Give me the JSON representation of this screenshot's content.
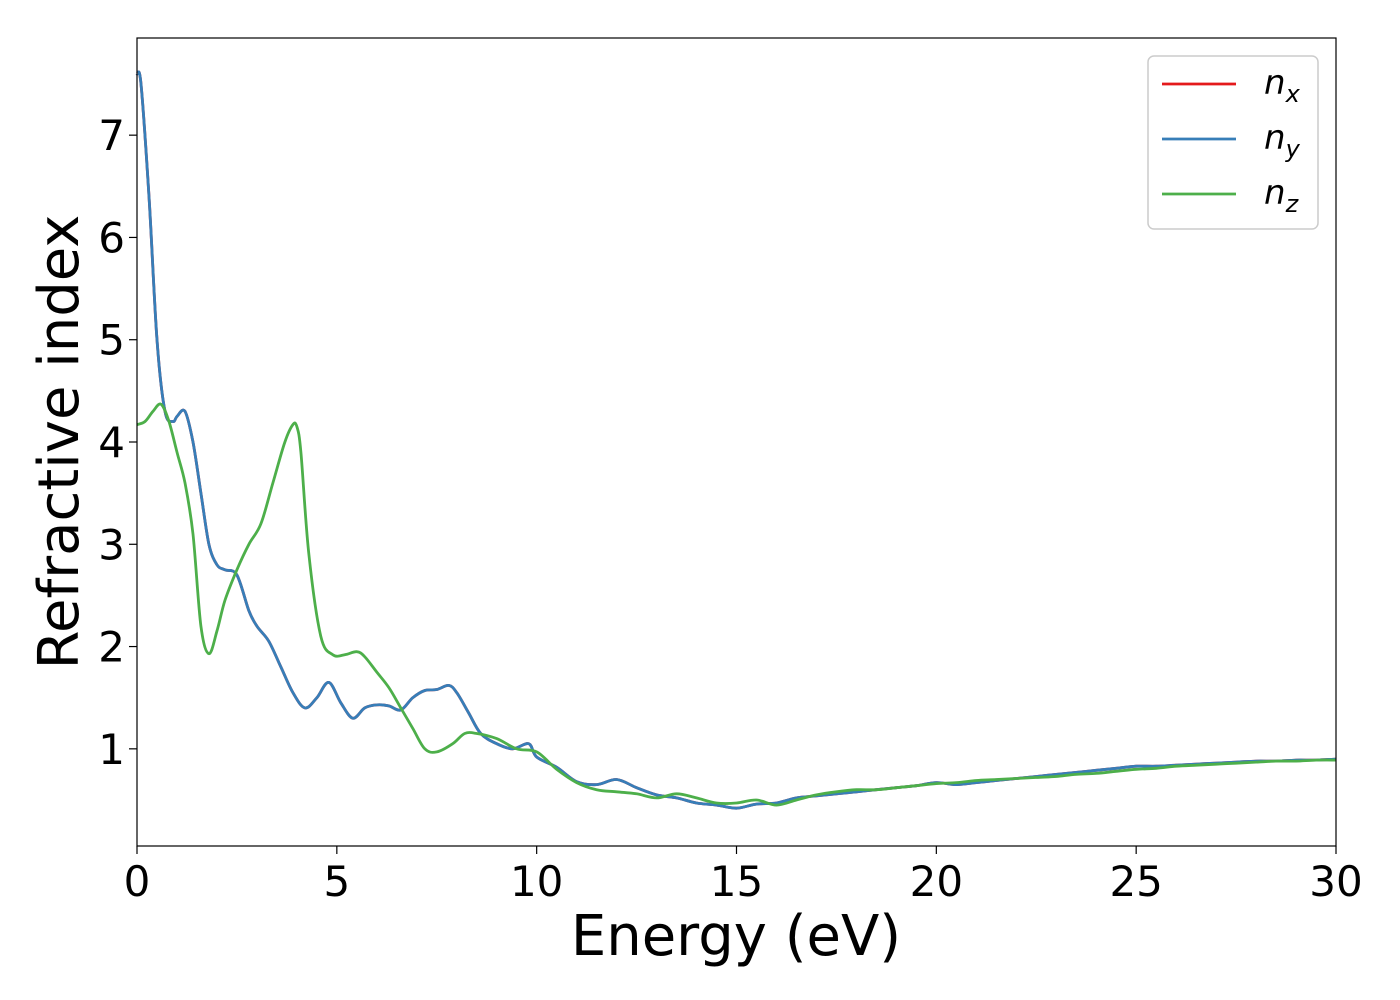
{
  "chart_data": {
    "type": "line",
    "title": "",
    "xlabel": "Energy (eV)",
    "ylabel": "Refractive index",
    "xlim": [
      0,
      30
    ],
    "ylim": [
      0.05,
      7.95
    ],
    "xticks": [
      0,
      5,
      10,
      15,
      20,
      25,
      30
    ],
    "yticks": [
      1,
      2,
      3,
      4,
      5,
      6,
      7
    ],
    "grid": false,
    "legend_position": "top-right",
    "series": [
      {
        "name": "n",
        "subscript": "x",
        "color": "#e41a1c",
        "x": [
          0,
          0.1,
          0.3,
          0.5,
          0.7,
          0.9,
          1.0,
          1.2,
          1.4,
          1.6,
          1.8,
          2.0,
          2.2,
          2.5,
          2.8,
          3.0,
          3.3,
          3.6,
          3.9,
          4.2,
          4.5,
          4.8,
          5.1,
          5.4,
          5.7,
          6.0,
          6.3,
          6.6,
          6.9,
          7.2,
          7.5,
          7.8,
          8.0,
          8.3,
          8.6,
          9.0,
          9.4,
          9.8,
          10.0,
          10.5,
          11.0,
          11.5,
          12.0,
          12.5,
          13.0,
          13.5,
          14.0,
          14.5,
          15.0,
          15.5,
          16.0,
          16.5,
          17.0,
          17.5,
          18.0,
          18.5,
          19.0,
          19.5,
          20.0,
          20.5,
          21.0,
          21.5,
          22.0,
          22.5,
          23.0,
          23.5,
          24.0,
          24.5,
          25.0,
          25.5,
          26.0,
          26.5,
          27.0,
          27.5,
          28.0,
          28.5,
          29.0,
          29.5,
          30.0
        ],
        "y": [
          7.6,
          7.5,
          6.4,
          5.0,
          4.3,
          4.2,
          4.25,
          4.3,
          4.0,
          3.5,
          3.0,
          2.8,
          2.75,
          2.7,
          2.35,
          2.2,
          2.05,
          1.8,
          1.55,
          1.4,
          1.5,
          1.65,
          1.45,
          1.3,
          1.4,
          1.43,
          1.42,
          1.38,
          1.5,
          1.57,
          1.58,
          1.62,
          1.55,
          1.35,
          1.15,
          1.05,
          1.0,
          1.05,
          0.92,
          0.82,
          0.68,
          0.65,
          0.7,
          0.62,
          0.55,
          0.52,
          0.47,
          0.45,
          0.42,
          0.46,
          0.47,
          0.52,
          0.54,
          0.56,
          0.58,
          0.6,
          0.62,
          0.64,
          0.67,
          0.65,
          0.67,
          0.69,
          0.71,
          0.73,
          0.75,
          0.77,
          0.79,
          0.81,
          0.83,
          0.83,
          0.84,
          0.85,
          0.86,
          0.87,
          0.88,
          0.88,
          0.89,
          0.89,
          0.9
        ]
      },
      {
        "name": "n",
        "subscript": "y",
        "color": "#377eb8",
        "x": [
          0,
          0.1,
          0.3,
          0.5,
          0.7,
          0.9,
          1.0,
          1.2,
          1.4,
          1.6,
          1.8,
          2.0,
          2.2,
          2.5,
          2.8,
          3.0,
          3.3,
          3.6,
          3.9,
          4.2,
          4.5,
          4.8,
          5.1,
          5.4,
          5.7,
          6.0,
          6.3,
          6.6,
          6.9,
          7.2,
          7.5,
          7.8,
          8.0,
          8.3,
          8.6,
          9.0,
          9.4,
          9.8,
          10.0,
          10.5,
          11.0,
          11.5,
          12.0,
          12.5,
          13.0,
          13.5,
          14.0,
          14.5,
          15.0,
          15.5,
          16.0,
          16.5,
          17.0,
          17.5,
          18.0,
          18.5,
          19.0,
          19.5,
          20.0,
          20.5,
          21.0,
          21.5,
          22.0,
          22.5,
          23.0,
          23.5,
          24.0,
          24.5,
          25.0,
          25.5,
          26.0,
          26.5,
          27.0,
          27.5,
          28.0,
          28.5,
          29.0,
          29.5,
          30.0
        ],
        "y": [
          7.6,
          7.5,
          6.4,
          5.0,
          4.3,
          4.2,
          4.25,
          4.3,
          4.0,
          3.5,
          3.0,
          2.8,
          2.75,
          2.7,
          2.35,
          2.2,
          2.05,
          1.8,
          1.55,
          1.4,
          1.5,
          1.65,
          1.45,
          1.3,
          1.4,
          1.43,
          1.42,
          1.38,
          1.5,
          1.57,
          1.58,
          1.62,
          1.55,
          1.35,
          1.15,
          1.05,
          1.0,
          1.05,
          0.92,
          0.82,
          0.68,
          0.65,
          0.7,
          0.62,
          0.55,
          0.52,
          0.47,
          0.45,
          0.42,
          0.46,
          0.47,
          0.52,
          0.54,
          0.56,
          0.58,
          0.6,
          0.62,
          0.64,
          0.67,
          0.65,
          0.67,
          0.69,
          0.71,
          0.73,
          0.75,
          0.77,
          0.79,
          0.81,
          0.83,
          0.83,
          0.84,
          0.85,
          0.86,
          0.87,
          0.88,
          0.88,
          0.89,
          0.89,
          0.9
        ]
      },
      {
        "name": "n",
        "subscript": "z",
        "color": "#4daf4a",
        "x": [
          0,
          0.2,
          0.4,
          0.6,
          0.8,
          1.0,
          1.2,
          1.4,
          1.6,
          1.8,
          2.0,
          2.2,
          2.5,
          2.8,
          3.1,
          3.4,
          3.7,
          3.9,
          4.0,
          4.1,
          4.3,
          4.6,
          4.9,
          5.2,
          5.5,
          5.7,
          6.0,
          6.3,
          6.6,
          6.9,
          7.2,
          7.5,
          7.9,
          8.2,
          8.5,
          9.0,
          9.5,
          10.0,
          10.5,
          11.0,
          11.5,
          12.0,
          12.5,
          13.0,
          13.5,
          14.0,
          14.5,
          15.0,
          15.5,
          16.0,
          16.5,
          17.0,
          17.5,
          18.0,
          18.5,
          19.0,
          19.5,
          20.0,
          20.5,
          21.0,
          21.5,
          22.0,
          22.5,
          23.0,
          23.5,
          24.0,
          24.5,
          25.0,
          25.5,
          26.0,
          26.5,
          27.0,
          27.5,
          28.0,
          28.5,
          29.0,
          29.5,
          30.0
        ],
        "y": [
          4.17,
          4.2,
          4.3,
          4.37,
          4.2,
          3.9,
          3.6,
          3.1,
          2.2,
          1.93,
          2.15,
          2.45,
          2.75,
          3.0,
          3.2,
          3.6,
          4.0,
          4.17,
          4.15,
          3.9,
          2.9,
          2.1,
          1.92,
          1.92,
          1.95,
          1.9,
          1.75,
          1.6,
          1.4,
          1.2,
          1.0,
          0.97,
          1.05,
          1.15,
          1.15,
          1.1,
          1.0,
          0.97,
          0.8,
          0.67,
          0.6,
          0.58,
          0.56,
          0.52,
          0.56,
          0.52,
          0.47,
          0.47,
          0.5,
          0.45,
          0.5,
          0.55,
          0.58,
          0.6,
          0.6,
          0.62,
          0.64,
          0.66,
          0.67,
          0.69,
          0.7,
          0.71,
          0.72,
          0.73,
          0.75,
          0.76,
          0.78,
          0.8,
          0.81,
          0.83,
          0.84,
          0.85,
          0.86,
          0.87,
          0.88,
          0.88,
          0.89,
          0.89
        ]
      }
    ]
  }
}
